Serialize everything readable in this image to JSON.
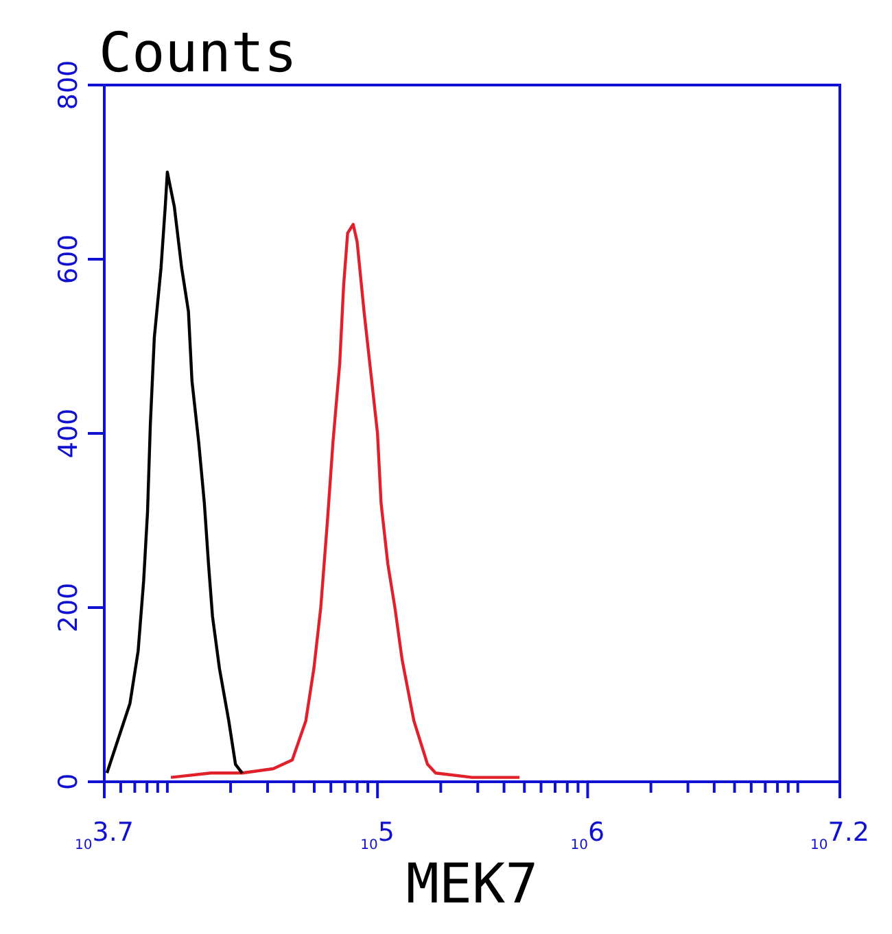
{
  "chart_data": {
    "type": "line",
    "title": "Counts",
    "xlabel": "MEK7",
    "log": "x",
    "xlim": [
      5012,
      15848932
    ],
    "ylim": [
      0,
      800
    ],
    "xticks": [
      {
        "value": 5012,
        "label": "10$^{3.7}$"
      },
      {
        "value": 6000,
        "label": null
      },
      {
        "value": 7000,
        "label": null
      },
      {
        "value": 8000,
        "label": null
      },
      {
        "value": 9000,
        "label": null
      },
      {
        "value": 10000,
        "label": null
      },
      {
        "value": 20000,
        "label": null
      },
      {
        "value": 30000,
        "label": null
      },
      {
        "value": 40000,
        "label": null
      },
      {
        "value": 50000,
        "label": null
      },
      {
        "value": 60000,
        "label": null
      },
      {
        "value": 70000,
        "label": null
      },
      {
        "value": 80000,
        "label": null
      },
      {
        "value": 90000,
        "label": null
      },
      {
        "value": 100000,
        "label": "10$^{5}$"
      },
      {
        "value": 200000,
        "label": null
      },
      {
        "value": 300000,
        "label": null
      },
      {
        "value": 400000,
        "label": null
      },
      {
        "value": 500000,
        "label": null
      },
      {
        "value": 600000,
        "label": null
      },
      {
        "value": 700000,
        "label": null
      },
      {
        "value": 800000,
        "label": null
      },
      {
        "value": 900000,
        "label": null
      },
      {
        "value": 1000000,
        "label": "10$^{6}$"
      },
      {
        "value": 2000000,
        "label": null
      },
      {
        "value": 3000000,
        "label": null
      },
      {
        "value": 4000000,
        "label": null
      },
      {
        "value": 5000000,
        "label": null
      },
      {
        "value": 6000000,
        "label": null
      },
      {
        "value": 7000000,
        "label": null
      },
      {
        "value": 8000000,
        "label": null
      },
      {
        "value": 9000000,
        "label": null
      },
      {
        "value": 10000000,
        "label": null
      },
      {
        "value": 15848932,
        "label": "10$^{7.2}$"
      }
    ],
    "yticks": [
      0,
      200,
      400,
      600,
      800
    ],
    "series": [
      {
        "color": "#000000",
        "x": [
          5160,
          6640,
          7260,
          7710,
          8050,
          8300,
          8670,
          9330,
          9770,
          10000,
          10800,
          11700,
          12600,
          13100,
          14100,
          15000,
          15700,
          16400,
          17700,
          19600,
          21100,
          22700
        ],
        "values": [
          10,
          90,
          150,
          230,
          310,
          410,
          510,
          590,
          660,
          700,
          660,
          590,
          540,
          460,
          390,
          320,
          250,
          190,
          130,
          70,
          20,
          10
        ]
      },
      {
        "color": "#e0202a",
        "x": [
          10400,
          16100,
          22700,
          31900,
          39300,
          45600,
          49800,
          53700,
          57800,
          61400,
          66100,
          69000,
          72100,
          76600,
          80000,
          86300,
          92900,
          100000,
          104000,
          112000,
          121000,
          131000,
          149000,
          173000,
          189000,
          282000,
          474000
        ],
        "values": [
          5,
          10,
          10,
          15,
          25,
          70,
          130,
          200,
          300,
          390,
          480,
          570,
          630,
          640,
          620,
          540,
          470,
          400,
          320,
          250,
          200,
          140,
          70,
          20,
          10,
          5,
          5
        ]
      }
    ]
  }
}
